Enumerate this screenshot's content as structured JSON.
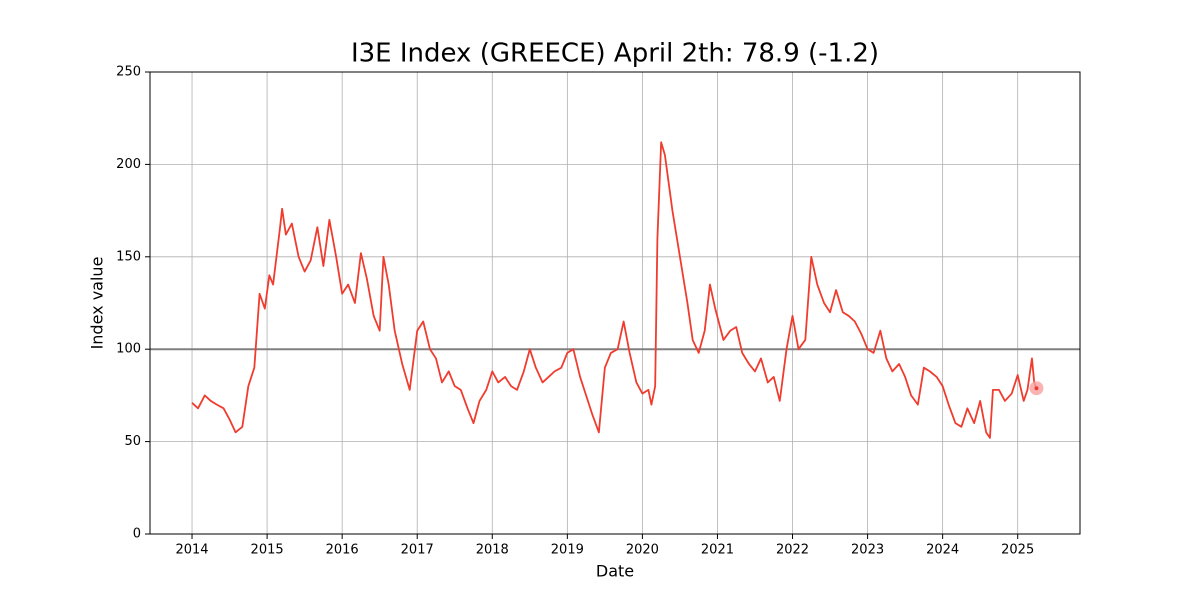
{
  "chart_data": {
    "type": "line",
    "title": "I3E Index (GREECE) April 2th: 78.9 (-1.2)",
    "x_label": "Date",
    "y_label": "Index value",
    "x": [
      2014.0,
      2014.08,
      2014.17,
      2014.25,
      2014.33,
      2014.42,
      2014.5,
      2014.58,
      2014.67,
      2014.75,
      2014.83,
      2014.9,
      2014.97,
      2015.03,
      2015.08,
      2015.17,
      2015.2,
      2015.25,
      2015.33,
      2015.42,
      2015.5,
      2015.58,
      2015.67,
      2015.75,
      2015.83,
      2015.92,
      2016.0,
      2016.08,
      2016.17,
      2016.25,
      2016.33,
      2016.42,
      2016.5,
      2016.55,
      2016.62,
      2016.7,
      2016.8,
      2016.9,
      2017.0,
      2017.08,
      2017.17,
      2017.25,
      2017.33,
      2017.42,
      2017.5,
      2017.58,
      2017.67,
      2017.75,
      2017.83,
      2017.92,
      2018.0,
      2018.08,
      2018.17,
      2018.25,
      2018.33,
      2018.42,
      2018.5,
      2018.58,
      2018.67,
      2018.75,
      2018.83,
      2018.92,
      2019.0,
      2019.08,
      2019.17,
      2019.25,
      2019.33,
      2019.42,
      2019.5,
      2019.58,
      2019.67,
      2019.75,
      2019.83,
      2019.92,
      2020.0,
      2020.08,
      2020.12,
      2020.17,
      2020.2,
      2020.25,
      2020.3,
      2020.4,
      2020.5,
      2020.6,
      2020.67,
      2020.75,
      2020.83,
      2020.9,
      2020.97,
      2021.08,
      2021.17,
      2021.25,
      2021.33,
      2021.42,
      2021.5,
      2021.58,
      2021.67,
      2021.75,
      2021.83,
      2021.92,
      2022.0,
      2022.08,
      2022.17,
      2022.25,
      2022.33,
      2022.42,
      2022.5,
      2022.58,
      2022.67,
      2022.75,
      2022.83,
      2022.92,
      2023.0,
      2023.08,
      2023.17,
      2023.25,
      2023.33,
      2023.42,
      2023.5,
      2023.58,
      2023.67,
      2023.75,
      2023.83,
      2023.92,
      2024.0,
      2024.08,
      2024.17,
      2024.25,
      2024.33,
      2024.42,
      2024.5,
      2024.58,
      2024.63,
      2024.67,
      2024.75,
      2024.83,
      2024.92,
      2025.0,
      2025.08,
      2025.13,
      2025.19,
      2025.22,
      2025.25
    ],
    "series": [
      {
        "name": "I3E Index",
        "color": "#f03c2e",
        "values": [
          71,
          68,
          75,
          72,
          70,
          68,
          62,
          55,
          58,
          80,
          90,
          130,
          122,
          140,
          135,
          165,
          176,
          162,
          168,
          150,
          142,
          148,
          166,
          145,
          170,
          150,
          130,
          135,
          125,
          152,
          138,
          118,
          110,
          150,
          135,
          110,
          92,
          78,
          110,
          115,
          100,
          95,
          82,
          88,
          80,
          78,
          68,
          60,
          72,
          78,
          88,
          82,
          85,
          80,
          78,
          88,
          100,
          90,
          82,
          85,
          88,
          90,
          98,
          100,
          85,
          75,
          65,
          55,
          90,
          98,
          100,
          115,
          98,
          82,
          76,
          78,
          70,
          80,
          160,
          212,
          205,
          175,
          150,
          125,
          105,
          98,
          110,
          135,
          122,
          105,
          110,
          112,
          98,
          92,
          88,
          95,
          82,
          85,
          72,
          100,
          118,
          100,
          105,
          150,
          135,
          125,
          120,
          132,
          120,
          118,
          115,
          108,
          100,
          98,
          110,
          95,
          88,
          92,
          85,
          75,
          70,
          90,
          88,
          85,
          80,
          70,
          60,
          58,
          68,
          60,
          72,
          55,
          52,
          78,
          78,
          72,
          76,
          86,
          72,
          78,
          95,
          82,
          78.9
        ]
      }
    ],
    "xlim": [
      2013.44,
      2025.83
    ],
    "xticks": [
      2014,
      2015,
      2016,
      2017,
      2018,
      2019,
      2020,
      2021,
      2022,
      2023,
      2024,
      2025
    ],
    "ylim": [
      0,
      250
    ],
    "yticks": [
      0,
      50,
      100,
      150,
      200,
      250
    ],
    "reference_line": 100,
    "reference_color": "#808080",
    "highlight_last": true,
    "highlight_color": "#f8a0a0",
    "grid": true
  }
}
